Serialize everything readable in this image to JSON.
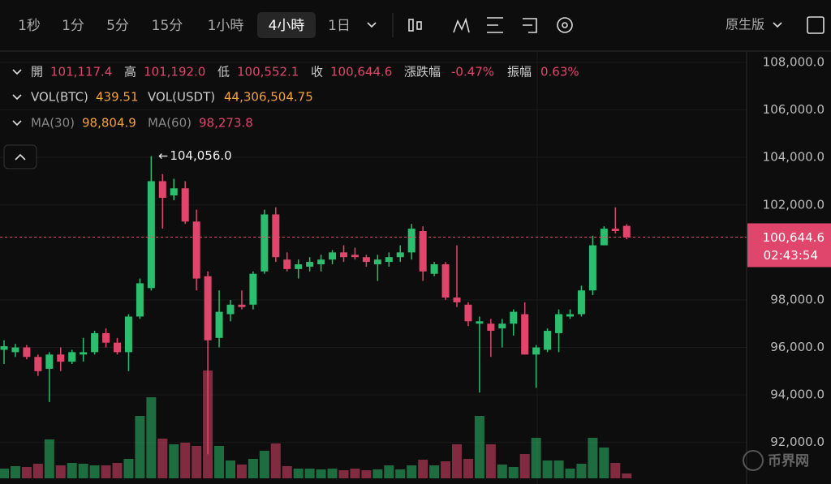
{
  "toolbar": {
    "intervals": [
      "1秒",
      "1分",
      "5分",
      "15分",
      "1小時",
      "4小時",
      "1日"
    ],
    "active": 5,
    "mode": "原生版"
  },
  "legend": {
    "row1": [
      "開",
      "101,117.4",
      "高",
      "101,192.0",
      "低",
      "100,552.1",
      "收",
      "100,644.6",
      "漲跌幅",
      "-0.47%",
      "振幅",
      "0.63%"
    ],
    "row2": [
      "VOL(BTC)",
      "439.51",
      "VOL(USDT)",
      "44,306,504.75"
    ],
    "row3": [
      "MA(30)",
      "98,804.9",
      "MA(60)",
      "98,273.8"
    ]
  },
  "chart_data": {
    "type": "candlestick",
    "ylim": [
      91000,
      108500
    ],
    "yticks": [
      {
        "value": 108000,
        "label": "108,000.0"
      },
      {
        "value": 106000,
        "label": "106,000.0"
      },
      {
        "value": 104000,
        "label": "104,000.0"
      },
      {
        "value": 102000,
        "label": "102,000.0"
      },
      {
        "value": 98000,
        "label": "98,000.0"
      },
      {
        "value": 96000,
        "label": "96,000.0"
      },
      {
        "value": 94000,
        "label": "94,000.0"
      },
      {
        "value": 92000,
        "label": "92,000.0"
      }
    ],
    "up_color": "#2dbd6e",
    "down_color": "#e0466c",
    "open": [
      95900,
      95800,
      96000,
      95600,
      95100,
      95700,
      95400,
      95700,
      95800,
      96600,
      96200,
      95800,
      97300,
      98500,
      103000,
      102400,
      102700,
      101300,
      99000,
      96400,
      97400,
      97800,
      97800,
      99200,
      101600,
      99700,
      99300,
      99400,
      99500,
      99700,
      100000,
      99900,
      99800,
      99500,
      99600,
      99800,
      100000,
      100900,
      99100,
      99500,
      98100,
      97800,
      97000,
      97000,
      96800,
      97000,
      97400,
      95700,
      95900,
      96600,
      97300,
      97400,
      98400,
      100300,
      101000,
      101117.4
    ],
    "high": [
      96300,
      96150,
      96100,
      95700,
      95800,
      96000,
      95900,
      96400,
      96700,
      96800,
      96400,
      97400,
      98900,
      104056,
      103300,
      103100,
      103000,
      101800,
      99200,
      98400,
      98000,
      98400,
      99200,
      101800,
      101900,
      100000,
      99700,
      99800,
      99900,
      100100,
      100300,
      100200,
      99900,
      99900,
      100000,
      100300,
      101200,
      101100,
      99600,
      99600,
      100300,
      97900,
      97300,
      97200,
      97200,
      97600,
      97900,
      96100,
      96800,
      97600,
      97600,
      98600,
      100700,
      101100,
      101900,
      101192.0
    ],
    "low": [
      95300,
      95600,
      95500,
      94800,
      93700,
      95000,
      95300,
      95400,
      95700,
      96000,
      95700,
      95000,
      97200,
      98400,
      101000,
      102200,
      101200,
      98400,
      91500,
      96000,
      97100,
      97600,
      97600,
      99100,
      99600,
      99200,
      98900,
      99200,
      99200,
      99500,
      99600,
      99700,
      99400,
      98800,
      99400,
      99600,
      99700,
      98800,
      99000,
      98000,
      97700,
      96900,
      94100,
      95600,
      96000,
      96500,
      95700,
      94300,
      95800,
      95800,
      97200,
      97300,
      98200,
      100300,
      100800,
      100552.1
    ],
    "close": [
      96050,
      96000,
      95600,
      95000,
      95700,
      95400,
      95800,
      95800,
      96600,
      96200,
      95800,
      97300,
      98700,
      103000,
      102300,
      102700,
      101300,
      98900,
      96300,
      97500,
      97800,
      97700,
      99100,
      101600,
      99800,
      99300,
      99500,
      99600,
      99700,
      100000,
      99800,
      99800,
      99600,
      99700,
      99800,
      100000,
      101000,
      99200,
      99500,
      98100,
      97900,
      97100,
      97100,
      96700,
      97000,
      97500,
      95700,
      96000,
      96700,
      97400,
      97400,
      98400,
      100300,
      101000,
      100900,
      100644.6
    ],
    "volume": [
      876,
      1095,
      1022,
      1314,
      3504,
      1168,
      1387,
      1314,
      1168,
      1168,
      1387,
      1752,
      5621,
      7300,
      3577,
      3066,
      3212,
      2920,
      9709,
      2920,
      1606,
      1241,
      1752,
      2482,
      3139,
      1095,
      876,
      876,
      803,
      876,
      730,
      876,
      730,
      803,
      1168,
      803,
      1168,
      1679,
      1168,
      1533,
      3066,
      1752,
      5621,
      3066,
      1241,
      1022,
      2190,
      3650,
      1606,
      1606,
      876,
      1314,
      3650,
      2774,
      1387,
      439.51
    ],
    "high_label": "104,056.0",
    "last_price": {
      "value": 100644.6,
      "label": "100,644.6"
    },
    "countdown": "02:43:54"
  },
  "watermark": "币界网"
}
